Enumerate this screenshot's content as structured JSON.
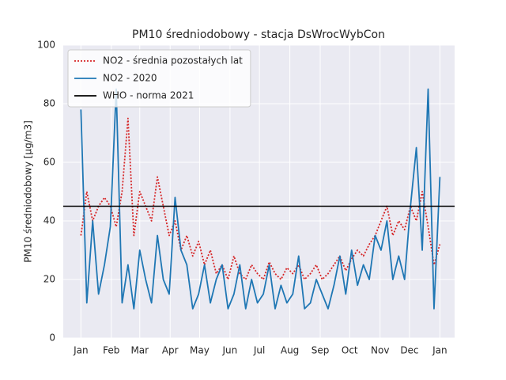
{
  "chart_data": {
    "type": "line",
    "title": "PM10 średniodobowy - stacja DsWrocWybCon",
    "y_label": "PM10 średniodobowy [µg/m3]",
    "x": [
      0,
      6,
      12,
      18,
      24,
      30,
      36,
      42,
      48,
      54,
      60,
      66,
      72,
      78,
      84,
      90,
      96,
      102,
      108,
      114,
      120,
      126,
      132,
      138,
      144,
      150,
      156,
      162,
      168,
      174,
      180,
      186,
      192,
      198,
      204,
      210,
      216,
      222,
      228,
      234,
      240,
      246,
      252,
      258,
      264,
      270,
      276,
      282,
      288,
      294,
      300,
      306,
      312,
      318,
      324,
      330,
      336,
      342,
      348,
      354,
      360,
      366
    ],
    "series": [
      {
        "name": "NO2 - średnia pozostałych lat",
        "color": "#d62728",
        "style": "dotted",
        "values": [
          35,
          50,
          40,
          45,
          48,
          45,
          38,
          50,
          75,
          35,
          50,
          45,
          40,
          55,
          45,
          35,
          40,
          30,
          35,
          28,
          33,
          25,
          30,
          22,
          25,
          20,
          28,
          22,
          20,
          25,
          22,
          20,
          26,
          22,
          20,
          24,
          22,
          25,
          20,
          22,
          25,
          20,
          22,
          25,
          28,
          23,
          27,
          30,
          28,
          32,
          35,
          40,
          45,
          35,
          40,
          37,
          45,
          40,
          50,
          38,
          25,
          32
        ]
      },
      {
        "name": "NO2 - 2020",
        "color": "#1f77b4",
        "style": "solid",
        "values": [
          78,
          12,
          40,
          15,
          25,
          38,
          85,
          12,
          25,
          10,
          30,
          20,
          12,
          35,
          20,
          15,
          48,
          30,
          25,
          10,
          15,
          25,
          12,
          20,
          25,
          10,
          15,
          25,
          10,
          20,
          12,
          15,
          25,
          10,
          18,
          12,
          15,
          28,
          10,
          12,
          20,
          15,
          10,
          18,
          28,
          15,
          30,
          18,
          25,
          20,
          35,
          30,
          40,
          20,
          28,
          20,
          45,
          65,
          30,
          85,
          10,
          55
        ]
      }
    ],
    "reference_line": {
      "name": "WHO - norma 2021",
      "value": 45,
      "color": "#000000"
    },
    "xlim": [
      -18,
      381
    ],
    "xticks": [
      {
        "value": 0,
        "label": "Jan"
      },
      {
        "value": 31,
        "label": "Feb"
      },
      {
        "value": 60,
        "label": "Mar"
      },
      {
        "value": 91,
        "label": "Apr"
      },
      {
        "value": 121,
        "label": "May"
      },
      {
        "value": 152,
        "label": "Jun"
      },
      {
        "value": 182,
        "label": "Jul"
      },
      {
        "value": 213,
        "label": "Aug"
      },
      {
        "value": 244,
        "label": "Sep"
      },
      {
        "value": 274,
        "label": "Oct"
      },
      {
        "value": 305,
        "label": "Nov"
      },
      {
        "value": 335,
        "label": "Dec"
      },
      {
        "value": 366,
        "label": "Jan"
      }
    ],
    "ylim": [
      0,
      100
    ],
    "yticks": [
      0,
      20,
      40,
      60,
      80,
      100
    ],
    "grid": true,
    "legend_position": "upper-left"
  }
}
